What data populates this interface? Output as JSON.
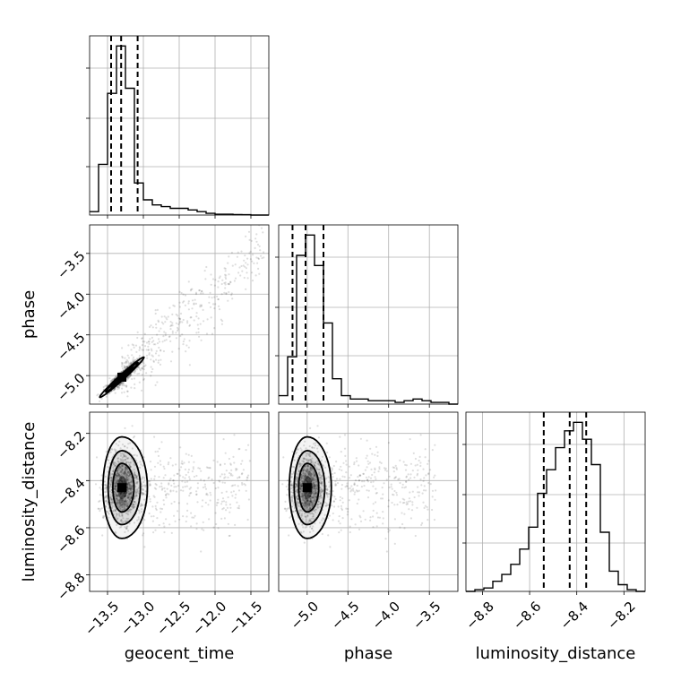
{
  "chart_data": {
    "type": "corner",
    "parameters": [
      {
        "name": "geocent_time",
        "label": "geocent_time",
        "range": [
          -13.75,
          -11.25
        ],
        "ticks": [
          -13.5,
          -13.0,
          -12.5,
          -12.0,
          -11.5
        ],
        "tick_labels": [
          "−13.5",
          "−13.0",
          "−12.5",
          "−12.0",
          "−11.5"
        ],
        "quantiles": [
          -13.45,
          -13.31,
          -13.08
        ],
        "histogram": {
          "bin_edges": [
            -13.75,
            -13.625,
            -13.5,
            -13.375,
            -13.25,
            -13.125,
            -13.0,
            -12.875,
            -12.75,
            -12.625,
            -12.5,
            -12.375,
            -12.25,
            -12.125,
            -12.0,
            -11.875,
            -11.75,
            -11.625,
            -11.5,
            -11.375,
            -11.25
          ],
          "counts": [
            2,
            30,
            72,
            100,
            75,
            19,
            9,
            6,
            5,
            4,
            4,
            3,
            2,
            1,
            0.5,
            0.5,
            0.3,
            0.2,
            0,
            0
          ]
        }
      },
      {
        "name": "phase",
        "label": "phase",
        "range": [
          -5.35,
          -3.15
        ],
        "ticks": [
          -5.0,
          -4.5,
          -4.0,
          -3.5
        ],
        "tick_labels": [
          "−5.0",
          "−4.5",
          "−4.0",
          "−3.5"
        ],
        "quantiles": [
          -5.18,
          -5.02,
          -4.8
        ],
        "histogram": {
          "bin_edges": [
            -5.35,
            -5.24,
            -5.13,
            -5.02,
            -4.91,
            -4.8,
            -4.69,
            -4.58,
            -4.47,
            -4.36,
            -4.25,
            -4.14,
            -4.03,
            -3.92,
            -3.81,
            -3.7,
            -3.59,
            -3.48,
            -3.37,
            -3.26,
            -3.15
          ],
          "counts": [
            5,
            28,
            88,
            100,
            82,
            48,
            15,
            5,
            3,
            3,
            2,
            2,
            2,
            1,
            2,
            3,
            2,
            1,
            1,
            0
          ]
        }
      },
      {
        "name": "luminosity_distance",
        "label": "luminosity_distance",
        "range": [
          -8.87,
          -8.11
        ],
        "ticks": [
          -8.8,
          -8.6,
          -8.4,
          -8.2
        ],
        "tick_labels": [
          "−8.8",
          "−8.6",
          "−8.4",
          "−8.2"
        ],
        "quantiles": [
          -8.54,
          -8.43,
          -8.36
        ],
        "histogram": {
          "bin_edges": [
            -8.87,
            -8.832,
            -8.794,
            -8.756,
            -8.718,
            -8.68,
            -8.642,
            -8.604,
            -8.566,
            -8.528,
            -8.49,
            -8.452,
            -8.414,
            -8.376,
            -8.338,
            -8.3,
            -8.262,
            -8.224,
            -8.186,
            -8.148,
            -8.11
          ],
          "counts": [
            0,
            1,
            2,
            6,
            10,
            16,
            25,
            38,
            58,
            72,
            85,
            95,
            100,
            90,
            75,
            35,
            12,
            4,
            1,
            0
          ]
        }
      }
    ],
    "pairs": [
      {
        "x": "geocent_time",
        "y": "phase",
        "peak": [
          -13.3,
          -5.02
        ],
        "correlation": "strong positive"
      },
      {
        "x": "geocent_time",
        "y": "luminosity_distance",
        "peak": [
          -13.3,
          -8.43
        ],
        "correlation": "none"
      },
      {
        "x": "phase",
        "y": "luminosity_distance",
        "peak": [
          -5.0,
          -8.43
        ],
        "correlation": "none"
      }
    ],
    "grid": true,
    "legend": "none"
  }
}
